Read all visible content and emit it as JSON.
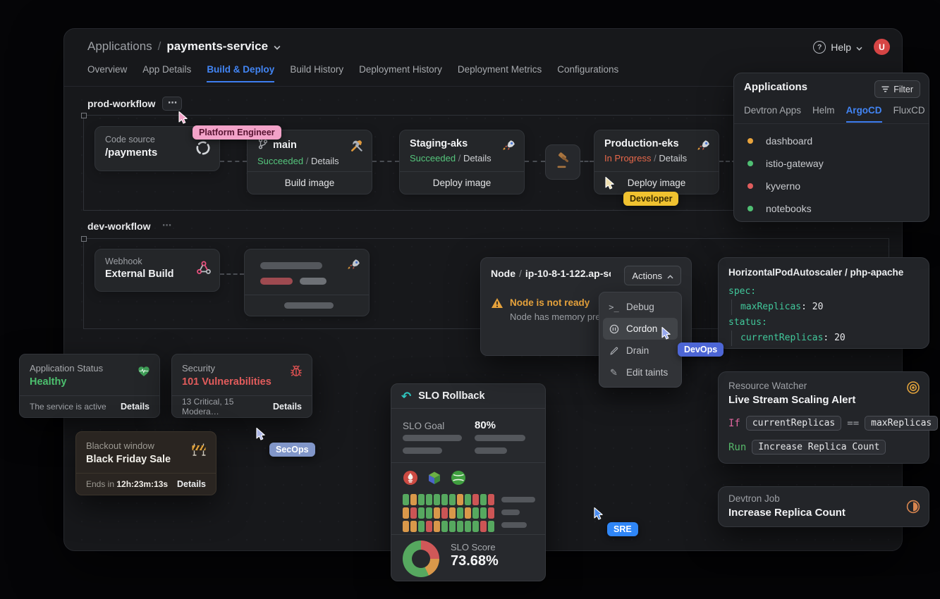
{
  "header": {
    "breadcrumb_root": "Applications",
    "breadcrumb_sep": "/",
    "app_name": "payments-service",
    "tabs": [
      "Overview",
      "App Details",
      "Build & Deploy",
      "Build History",
      "Deployment History",
      "Deployment Metrics",
      "Configurations"
    ],
    "active_tab": "Build & Deploy",
    "help_label": "Help",
    "avatar_initial": "U"
  },
  "prod_workflow": {
    "title": "prod-workflow",
    "more_label": "⋯",
    "code_card": {
      "label": "Code source",
      "value": "/payments"
    },
    "build_card": {
      "branch": "main",
      "status": "Succeeded",
      "status_color": "#55c57c",
      "sep": "/",
      "details_label": "Details",
      "action": "Build image"
    },
    "staging_card": {
      "name": "Staging-aks",
      "status": "Succeeded",
      "status_color": "#55c57c",
      "sep": "/",
      "details_label": "Details",
      "action": "Deploy image"
    },
    "prod_card": {
      "name": "Production-eks",
      "status": "In Progress",
      "status_color": "#e8684a",
      "sep": "/",
      "details_label": "Details",
      "action": "Deploy image"
    }
  },
  "dev_workflow": {
    "title": "dev-workflow",
    "more_label": "⋯",
    "webhook_card": {
      "label": "Webhook",
      "value": "External Build"
    }
  },
  "applications_panel": {
    "title": "Applications",
    "filter_label": "Filter",
    "tabs": [
      "Devtron Apps",
      "Helm",
      "ArgoCD",
      "FluxCD"
    ],
    "active_tab": "ArgoCD",
    "items": [
      {
        "name": "dashboard",
        "status_color": "#e8a33c"
      },
      {
        "name": "istio-gateway",
        "status_color": "#4fbf73"
      },
      {
        "name": "kyverno",
        "status_color": "#e05d5d"
      },
      {
        "name": "notebooks",
        "status_color": "#4fbf73"
      }
    ]
  },
  "node_panel": {
    "title_prefix": "Node",
    "title_sep": "/",
    "node_name": "ip-10-8-1-122.ap-so…",
    "actions_label": "Actions",
    "warning_title": "Node is not ready",
    "warning_subtitle": "Node has memory pre…",
    "menu": [
      {
        "label": "Debug",
        "icon": "terminal-icon"
      },
      {
        "label": "Cordon",
        "icon": "pause-circle-icon"
      },
      {
        "label": "Drain",
        "icon": "brush-icon"
      },
      {
        "label": "Edit taints",
        "icon": "pen-icon"
      }
    ]
  },
  "hpa_panel": {
    "title": "HorizontalPodAutoscaler / php-apache",
    "k_spec": "spec:",
    "k_max": "maxReplicas",
    "v_max": "20",
    "k_status": "status:",
    "k_current": "currentReplicas",
    "v_current": "20",
    "colon": ":"
  },
  "status_cards": {
    "app": {
      "label": "Application Status",
      "value": "Healthy",
      "value_color": "#4cc06e",
      "footer": "The service is active",
      "details_label": "Details"
    },
    "security": {
      "label": "Security",
      "value": "101 Vulnerabilities",
      "value_color": "#e35c5c",
      "footer": "13 Critical, 15 Modera…",
      "details_label": "Details"
    }
  },
  "blackout_card": {
    "label": "Blackout window",
    "value": "Black Friday Sale",
    "footer_prefix": "Ends in",
    "countdown": "12h:23m:13s",
    "details_label": "Details"
  },
  "slo_card": {
    "title": "SLO Rollback",
    "goal_label": "SLO Goal",
    "goal_value": "80%",
    "score_label": "SLO Score",
    "score_value": "73.68%",
    "heatmap": {
      "colors": {
        "g": "#56a85f",
        "o": "#d9984a",
        "r": "#cc5555"
      },
      "rows": [
        [
          "g",
          "o",
          "g",
          "g",
          "g",
          "g",
          "g",
          "o",
          "g",
          "r",
          "g",
          "r"
        ],
        [
          "o",
          "r",
          "g",
          "g",
          "o",
          "r",
          "o",
          "g",
          "o",
          "g",
          "g",
          "r"
        ],
        [
          "o",
          "o",
          "g",
          "r",
          "o",
          "g",
          "g",
          "g",
          "g",
          "g",
          "r",
          "g"
        ]
      ]
    },
    "donut_segments": [
      {
        "color": "#d05858",
        "pct": 25
      },
      {
        "color": "#d9984a",
        "pct": 18
      },
      {
        "color": "#56a85f",
        "pct": 57
      }
    ]
  },
  "resource_watcher": {
    "label": "Resource Watcher",
    "title": "Live Stream Scaling Alert",
    "if_keyword": "If",
    "condition_left": "currentReplicas",
    "operator": "==",
    "condition_right": "maxReplicas",
    "run_keyword": "Run",
    "run_action": "Increase Replica Count"
  },
  "devtron_job": {
    "label": "Devtron Job",
    "title": "Increase Replica Count"
  },
  "cursors": [
    {
      "id": "platform-engineer",
      "label": "Platform Engineer",
      "cursor_color": "#f2a2c8",
      "label_bg": "#f2a2c8",
      "label_fg": "#55122f"
    },
    {
      "id": "developer",
      "label": "Developer",
      "cursor_color": "#eedfae",
      "label_bg": "#f0c230",
      "label_fg": "#3a2c00"
    },
    {
      "id": "devops",
      "label": "DevOps",
      "cursor_color": "#97a8ee",
      "label_bg": "#4d66d6",
      "label_fg": "#ffffff"
    },
    {
      "id": "secops",
      "label": "SecOps",
      "cursor_color": "#aeb8e8",
      "label_bg": "#8196c9",
      "label_fg": "#ffffff"
    },
    {
      "id": "sre",
      "label": "SRE",
      "cursor_color": "#4a8cf0",
      "label_bg": "#2f86f6",
      "label_fg": "#ffffff"
    }
  ]
}
